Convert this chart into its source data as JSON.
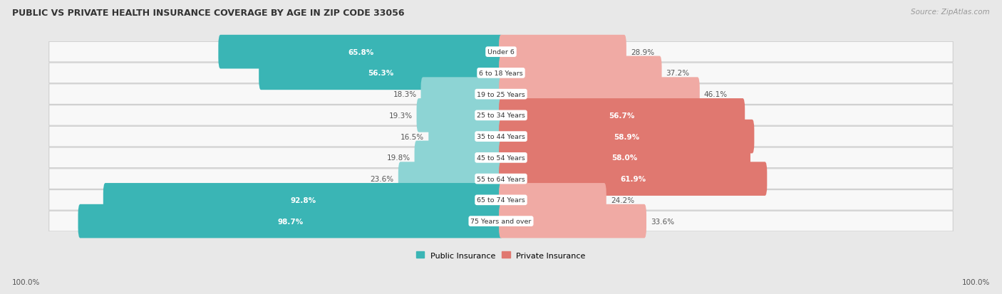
{
  "title": "PUBLIC VS PRIVATE HEALTH INSURANCE COVERAGE BY AGE IN ZIP CODE 33056",
  "source": "Source: ZipAtlas.com",
  "categories": [
    "Under 6",
    "6 to 18 Years",
    "19 to 25 Years",
    "25 to 34 Years",
    "35 to 44 Years",
    "45 to 54 Years",
    "55 to 64 Years",
    "65 to 74 Years",
    "75 Years and over"
  ],
  "public_values": [
    65.8,
    56.3,
    18.3,
    19.3,
    16.5,
    19.8,
    23.6,
    92.8,
    98.7
  ],
  "private_values": [
    28.9,
    37.2,
    46.1,
    56.7,
    58.9,
    58.0,
    61.9,
    24.2,
    33.6
  ],
  "public_color_dark": "#3ab5b5",
  "public_color_light": "#8dd4d4",
  "private_color_dark": "#e07870",
  "private_color_light": "#f0aaa4",
  "bg_color": "#e8e8e8",
  "row_bg_color": "#f8f8f8",
  "row_border_color": "#d0d0d0",
  "title_color": "#333333",
  "source_color": "#999999",
  "label_color_inside": "#ffffff",
  "label_color_outside": "#555555",
  "figsize": [
    14.06,
    4.14
  ],
  "dpi": 100
}
